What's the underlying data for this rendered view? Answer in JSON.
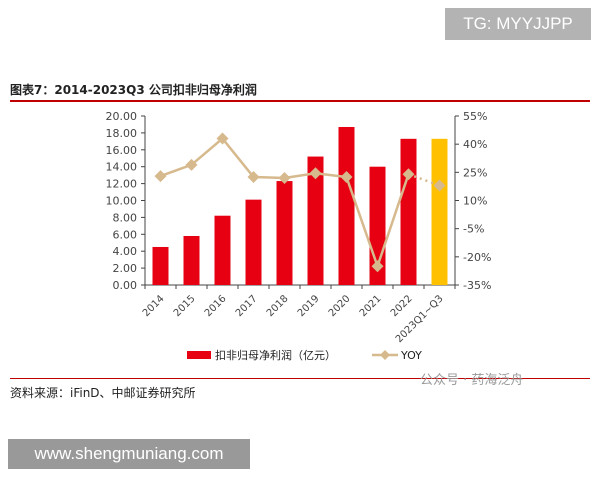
{
  "watermark_top": "TG: MYYJJPP",
  "watermark_bottom": "www.shengmuniang.com",
  "wechat": "公众号 · 药海泛舟",
  "source": "资料来源：iFinD、中邮证券研究所",
  "chart_data": {
    "type": "bar",
    "title": "图表7：2014-2023Q3 公司扣非归母净利润",
    "categories": [
      "2014",
      "2015",
      "2016",
      "2017",
      "2018",
      "2019",
      "2020",
      "2021",
      "2022",
      "2023Q1~Q3"
    ],
    "series": [
      {
        "name": "扣非归母净利润（亿元）",
        "type": "bar",
        "axis": "left",
        "values": [
          4.5,
          5.8,
          8.2,
          10.1,
          12.3,
          15.2,
          18.7,
          14.0,
          17.3,
          17.3
        ],
        "color": "#e60012",
        "highlight_color": "#ffc000"
      },
      {
        "name": "YOY",
        "type": "line",
        "axis": "right",
        "values": [
          23,
          29,
          43,
          22.5,
          22,
          24.5,
          22.5,
          -25,
          24,
          18
        ],
        "color": "#d6b98c"
      }
    ],
    "left_axis": {
      "ylim": [
        0,
        20
      ],
      "ticks": [
        "0.00",
        "2.00",
        "4.00",
        "6.00",
        "8.00",
        "10.00",
        "12.00",
        "14.00",
        "16.00",
        "18.00",
        "20.00"
      ]
    },
    "right_axis": {
      "ylim": [
        -35,
        55
      ],
      "ticks": [
        "-35%",
        "-20%",
        "-5%",
        "10%",
        "25%",
        "40%",
        "55%"
      ]
    },
    "legend_position": "bottom",
    "grid": false
  }
}
